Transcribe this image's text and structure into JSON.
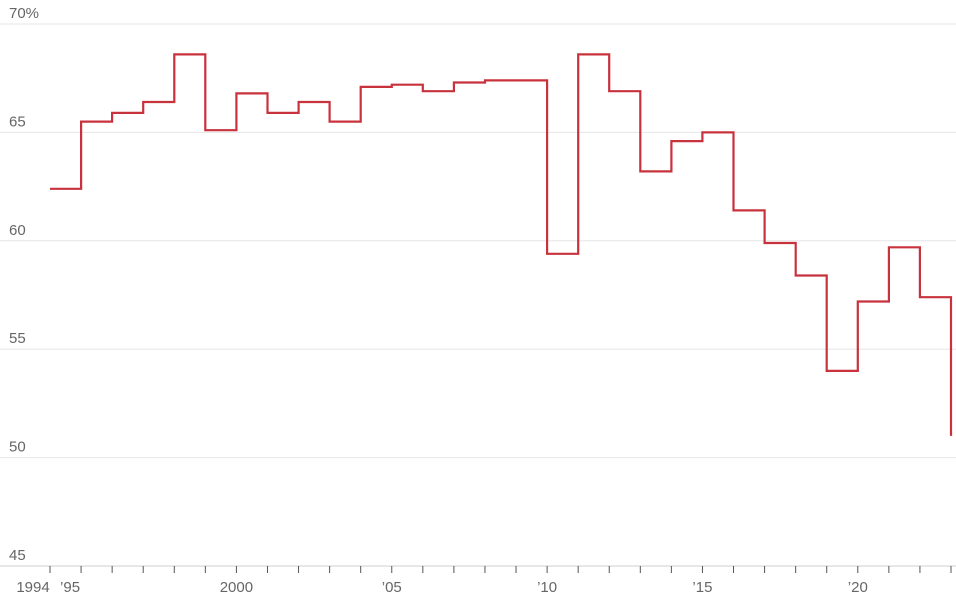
{
  "chart_data": {
    "type": "line",
    "step": true,
    "series": [
      {
        "color": "#c8323c",
        "x": [
          1994,
          1995,
          1996,
          1997,
          1998,
          1999,
          2000,
          2001,
          2002,
          2003,
          2004,
          2005,
          2006,
          2007,
          2008,
          2009,
          2010,
          2011,
          2012,
          2013,
          2014,
          2015,
          2016,
          2017,
          2018,
          2019,
          2020,
          2021,
          2022,
          2023
        ],
        "values": [
          62.4,
          65.5,
          65.9,
          66.4,
          68.6,
          65.1,
          66.8,
          65.9,
          66.4,
          65.5,
          67.1,
          67.2,
          66.9,
          67.3,
          67.4,
          67.4,
          59.4,
          68.6,
          66.9,
          63.2,
          64.6,
          65.0,
          61.4,
          59.9,
          58.4,
          54.0,
          57.2,
          59.7,
          57.4,
          51.0
        ]
      }
    ],
    "y_ticks": [
      {
        "value": 45,
        "label": "45"
      },
      {
        "value": 50,
        "label": "50"
      },
      {
        "value": 55,
        "label": "55"
      },
      {
        "value": 60,
        "label": "60"
      },
      {
        "value": 65,
        "label": "65"
      },
      {
        "value": 70,
        "label": "70%"
      }
    ],
    "x_labels": [
      {
        "value": 1994,
        "label": "1994"
      },
      {
        "value": 1995,
        "label": "’95"
      },
      {
        "value": 2000,
        "label": "2000"
      },
      {
        "value": 2005,
        "label": "’05"
      },
      {
        "value": 2010,
        "label": "’10"
      },
      {
        "value": 2015,
        "label": "’15"
      },
      {
        "value": 2020,
        "label": "’20"
      }
    ],
    "x_ticks": [
      1994,
      1995,
      1996,
      1997,
      1998,
      1999,
      2000,
      2001,
      2002,
      2003,
      2004,
      2005,
      2006,
      2007,
      2008,
      2009,
      2010,
      2011,
      2012,
      2013,
      2014,
      2015,
      2016,
      2017,
      2018,
      2019,
      2020,
      2021,
      2022,
      2023
    ],
    "ylim": [
      45,
      70
    ],
    "xlim": [
      1994,
      2023
    ],
    "grid": true,
    "legend": "none"
  }
}
